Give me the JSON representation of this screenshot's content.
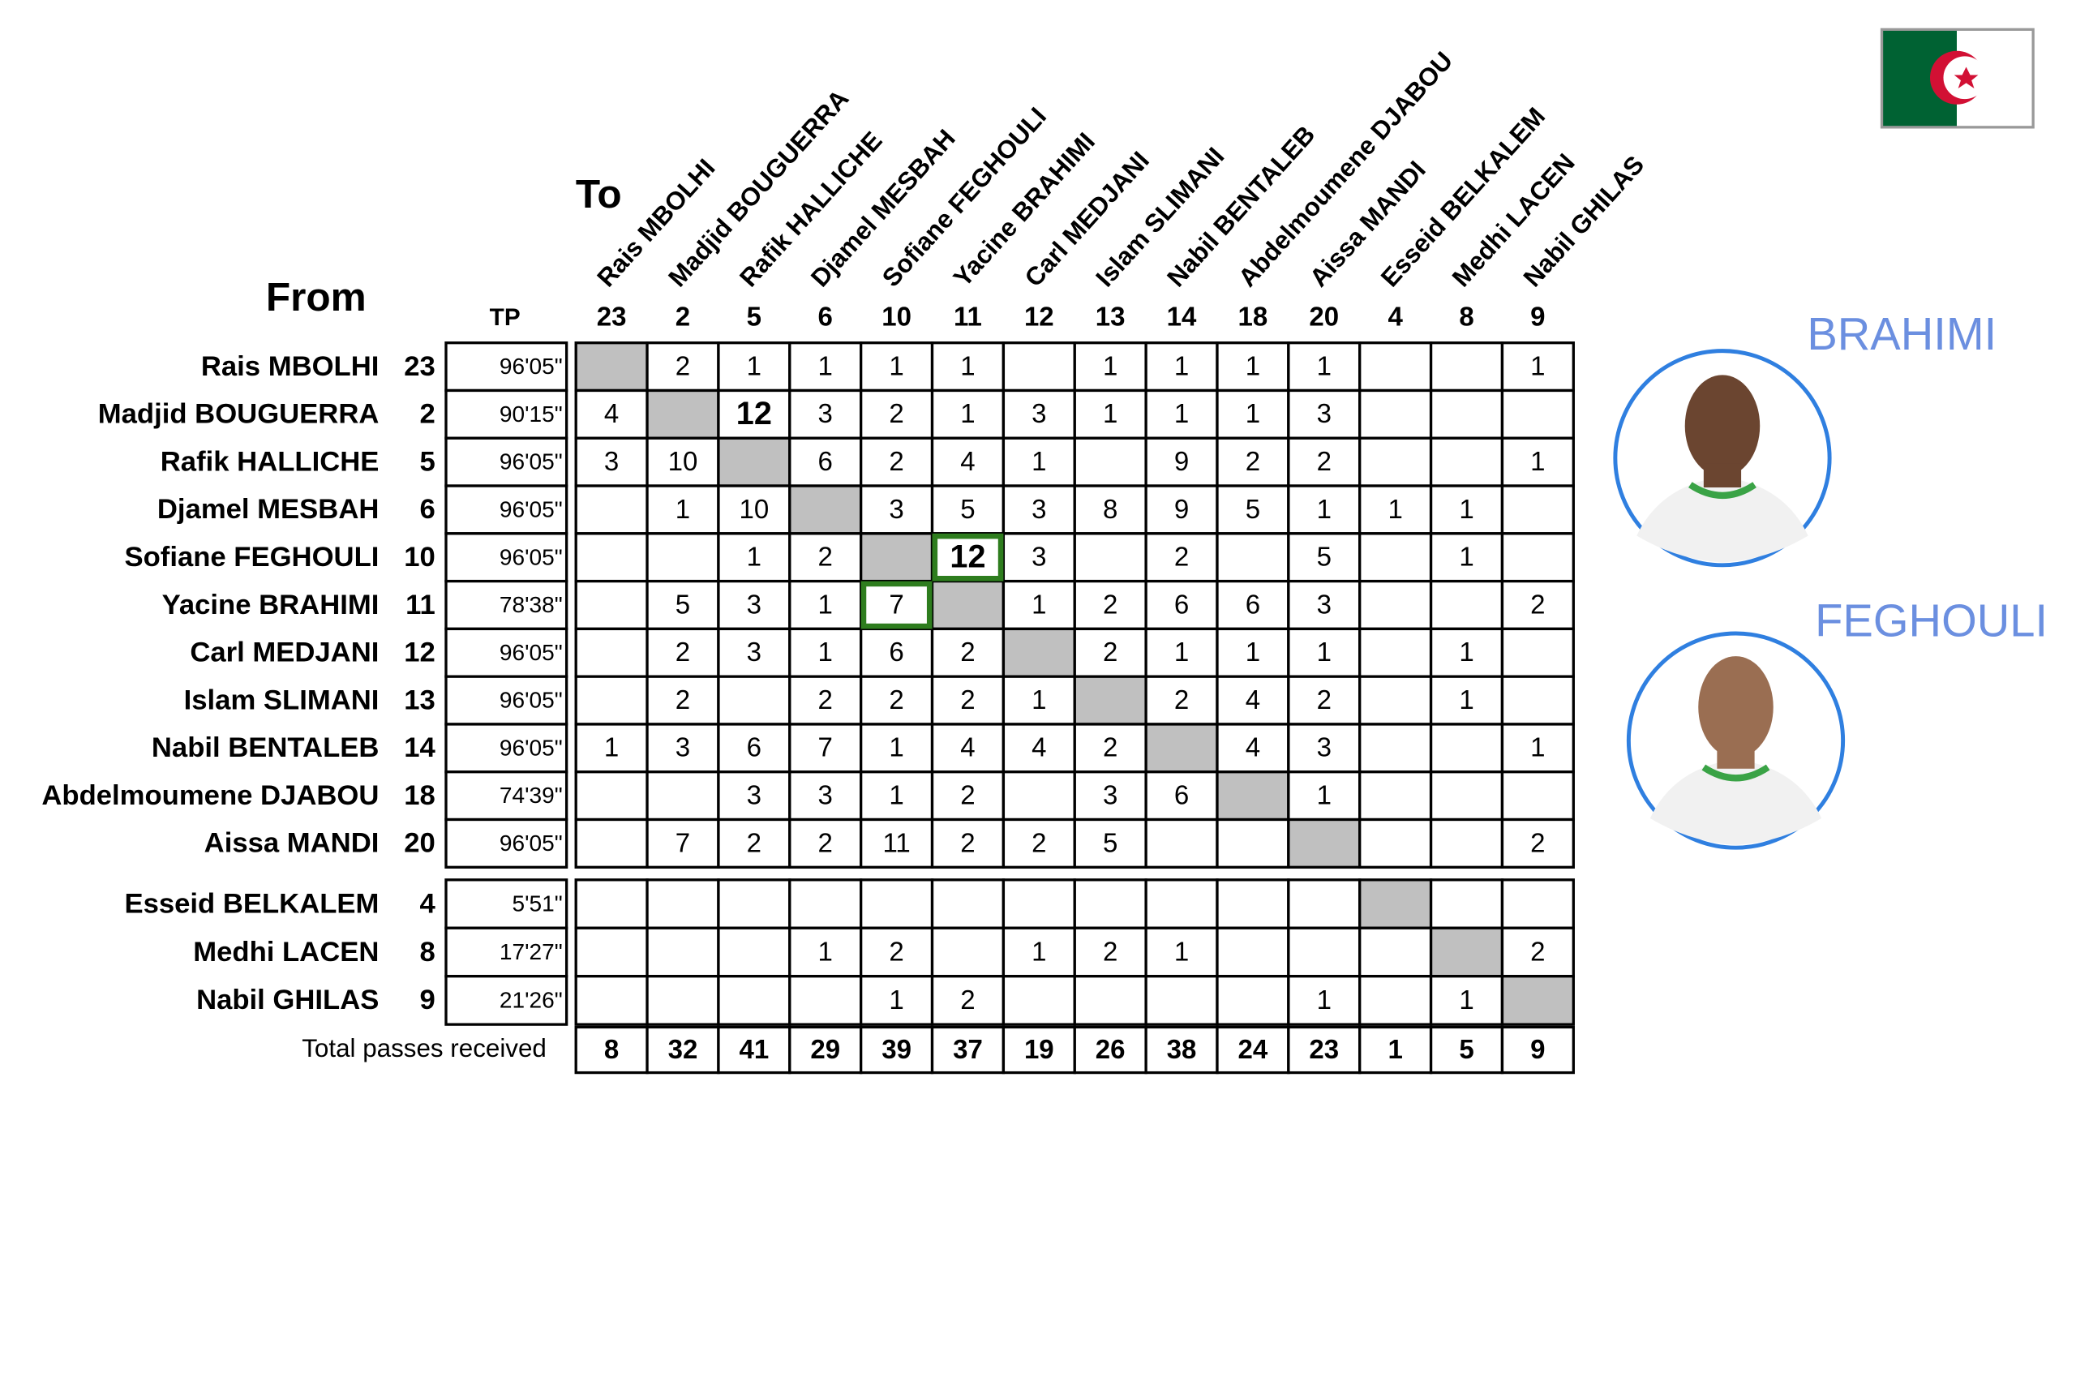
{
  "header": {
    "to_label": "To",
    "from_label": "From",
    "tp_label": "TP",
    "total_label": "Total passes received"
  },
  "columns": [
    {
      "name": "Rais MBOLHI",
      "number": 23
    },
    {
      "name": "Madjid BOUGUERRA",
      "number": 2
    },
    {
      "name": "Rafik HALLICHE",
      "number": 5
    },
    {
      "name": "Djamel MESBAH",
      "number": 6
    },
    {
      "name": "Sofiane FEGHOULI",
      "number": 10
    },
    {
      "name": "Yacine BRAHIMI",
      "number": 11
    },
    {
      "name": "Carl MEDJANI",
      "number": 12
    },
    {
      "name": "Islam SLIMANI",
      "number": 13
    },
    {
      "name": "Nabil BENTALEB",
      "number": 14
    },
    {
      "name": "Abdelmoumene DJABOU",
      "number": 18
    },
    {
      "name": "Aissa MANDI",
      "number": 20
    },
    {
      "name": "Esseid BELKALEM",
      "number": 4
    },
    {
      "name": "Medhi LACEN",
      "number": 8
    },
    {
      "name": "Nabil GHILAS",
      "number": 9
    }
  ],
  "rows": [
    {
      "name": "Rais MBOLHI",
      "number": 23,
      "tp": "96'05\"",
      "passes": [
        null,
        2,
        1,
        1,
        1,
        1,
        null,
        1,
        1,
        1,
        1,
        null,
        null,
        1
      ]
    },
    {
      "name": "Madjid BOUGUERRA",
      "number": 2,
      "tp": "90'15\"",
      "passes": [
        4,
        null,
        12,
        3,
        2,
        1,
        3,
        1,
        1,
        1,
        3,
        null,
        null,
        null
      ]
    },
    {
      "name": "Rafik HALLICHE",
      "number": 5,
      "tp": "96'05\"",
      "passes": [
        3,
        10,
        null,
        6,
        2,
        4,
        1,
        null,
        9,
        2,
        2,
        null,
        null,
        1
      ]
    },
    {
      "name": "Djamel MESBAH",
      "number": 6,
      "tp": "96'05\"",
      "passes": [
        null,
        1,
        10,
        null,
        3,
        5,
        3,
        8,
        9,
        5,
        1,
        1,
        1,
        null
      ]
    },
    {
      "name": "Sofiane FEGHOULI",
      "number": 10,
      "tp": "96'05\"",
      "passes": [
        null,
        null,
        1,
        2,
        null,
        12,
        3,
        null,
        2,
        null,
        5,
        null,
        1,
        null
      ]
    },
    {
      "name": "Yacine BRAHIMI",
      "number": 11,
      "tp": "78'38\"",
      "passes": [
        null,
        5,
        3,
        1,
        7,
        null,
        1,
        2,
        6,
        6,
        3,
        null,
        null,
        2
      ]
    },
    {
      "name": "Carl MEDJANI",
      "number": 12,
      "tp": "96'05\"",
      "passes": [
        null,
        2,
        3,
        1,
        6,
        2,
        null,
        2,
        1,
        1,
        1,
        null,
        1,
        null
      ]
    },
    {
      "name": "Islam SLIMANI",
      "number": 13,
      "tp": "96'05\"",
      "passes": [
        null,
        2,
        null,
        2,
        2,
        2,
        1,
        null,
        2,
        4,
        2,
        null,
        1,
        null
      ]
    },
    {
      "name": "Nabil BENTALEB",
      "number": 14,
      "tp": "96'05\"",
      "passes": [
        1,
        3,
        6,
        7,
        1,
        4,
        4,
        2,
        null,
        4,
        3,
        null,
        null,
        1
      ]
    },
    {
      "name": "Abdelmoumene DJABOU",
      "number": 18,
      "tp": "74'39\"",
      "passes": [
        null,
        null,
        3,
        3,
        1,
        2,
        null,
        3,
        6,
        null,
        1,
        null,
        null,
        null
      ]
    },
    {
      "name": "Aissa MANDI",
      "number": 20,
      "tp": "96'05\"",
      "passes": [
        null,
        7,
        2,
        2,
        11,
        2,
        2,
        5,
        null,
        null,
        null,
        null,
        null,
        2
      ]
    },
    {
      "name": "Esseid BELKALEM",
      "number": 4,
      "tp": "5'51\"",
      "passes": [
        null,
        null,
        null,
        null,
        null,
        null,
        null,
        null,
        null,
        null,
        null,
        null,
        null,
        null
      ]
    },
    {
      "name": "Medhi LACEN",
      "number": 8,
      "tp": "17'27\"",
      "passes": [
        null,
        null,
        null,
        1,
        2,
        null,
        1,
        2,
        1,
        null,
        null,
        null,
        null,
        2
      ]
    },
    {
      "name": "Nabil GHILAS",
      "number": 9,
      "tp": "21'26\"",
      "passes": [
        null,
        null,
        null,
        null,
        1,
        2,
        null,
        null,
        null,
        null,
        1,
        null,
        1,
        null
      ]
    }
  ],
  "totals": [
    8,
    32,
    41,
    29,
    39,
    37,
    19,
    26,
    38,
    24,
    23,
    1,
    5,
    9
  ],
  "players": [
    {
      "name": "BRAHIMI"
    },
    {
      "name": "FEGHOULI"
    }
  ]
}
